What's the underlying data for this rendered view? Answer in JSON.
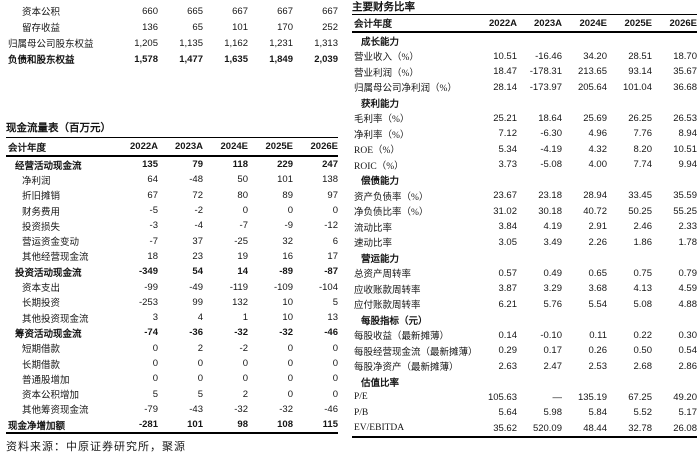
{
  "page": {
    "source_note": "资料来源：中原证券研究所，聚源"
  },
  "balance_sheet_tail": {
    "rows": [
      {
        "label": "资本公积",
        "indent": 2,
        "bold": false,
        "values": [
          "660",
          "665",
          "667",
          "667",
          "667"
        ]
      },
      {
        "label": "留存收益",
        "indent": 2,
        "bold": false,
        "values": [
          "136",
          "65",
          "101",
          "170",
          "252"
        ]
      },
      {
        "label": "归属母公司股东权益",
        "indent": 0,
        "bold": false,
        "values": [
          "1,205",
          "1,135",
          "1,162",
          "1,231",
          "1,313"
        ]
      },
      {
        "label": "负债和股东权益",
        "indent": 0,
        "bold": true,
        "values": [
          "1,578",
          "1,477",
          "1,635",
          "1,849",
          "2,039"
        ]
      }
    ]
  },
  "cash_flow": {
    "title": "现金流量表（百万元）",
    "header": {
      "label": "会计年度",
      "years": [
        "2022A",
        "2023A",
        "2024E",
        "2025E",
        "2026E"
      ]
    },
    "rows": [
      {
        "label": "经营活动现金流",
        "indent": 1,
        "bold": true,
        "values": [
          "135",
          "79",
          "118",
          "229",
          "247"
        ]
      },
      {
        "label": "净利润",
        "indent": 2,
        "bold": false,
        "values": [
          "64",
          "-48",
          "50",
          "101",
          "138"
        ]
      },
      {
        "label": "折旧摊销",
        "indent": 2,
        "bold": false,
        "values": [
          "67",
          "72",
          "80",
          "89",
          "97"
        ]
      },
      {
        "label": "财务费用",
        "indent": 2,
        "bold": false,
        "values": [
          "-5",
          "-2",
          "0",
          "0",
          "0"
        ]
      },
      {
        "label": "投资损失",
        "indent": 2,
        "bold": false,
        "values": [
          "-3",
          "-4",
          "-7",
          "-9",
          "-12"
        ]
      },
      {
        "label": "营运资金变动",
        "indent": 2,
        "bold": false,
        "values": [
          "-7",
          "37",
          "-25",
          "32",
          "6"
        ]
      },
      {
        "label": "其他经营现金流",
        "indent": 2,
        "bold": false,
        "values": [
          "18",
          "23",
          "19",
          "16",
          "17"
        ]
      },
      {
        "label": "投资活动现金流",
        "indent": 1,
        "bold": true,
        "values": [
          "-349",
          "54",
          "14",
          "-89",
          "-87"
        ]
      },
      {
        "label": "资本支出",
        "indent": 2,
        "bold": false,
        "values": [
          "-99",
          "-49",
          "-119",
          "-109",
          "-104"
        ]
      },
      {
        "label": "长期投资",
        "indent": 2,
        "bold": false,
        "values": [
          "-253",
          "99",
          "132",
          "10",
          "5"
        ]
      },
      {
        "label": "其他投资现金流",
        "indent": 2,
        "bold": false,
        "values": [
          "3",
          "4",
          "1",
          "10",
          "13"
        ]
      },
      {
        "label": "筹资活动现金流",
        "indent": 1,
        "bold": true,
        "values": [
          "-74",
          "-36",
          "-32",
          "-32",
          "-46"
        ]
      },
      {
        "label": "短期借款",
        "indent": 2,
        "bold": false,
        "values": [
          "0",
          "2",
          "-2",
          "0",
          "0"
        ]
      },
      {
        "label": "长期借款",
        "indent": 2,
        "bold": false,
        "values": [
          "0",
          "0",
          "0",
          "0",
          "0"
        ]
      },
      {
        "label": "普通股增加",
        "indent": 2,
        "bold": false,
        "values": [
          "0",
          "0",
          "0",
          "0",
          "0"
        ]
      },
      {
        "label": "资本公积增加",
        "indent": 2,
        "bold": false,
        "values": [
          "5",
          "5",
          "2",
          "0",
          "0"
        ]
      },
      {
        "label": "其他筹资现金流",
        "indent": 2,
        "bold": false,
        "values": [
          "-79",
          "-43",
          "-32",
          "-32",
          "-46"
        ]
      },
      {
        "label": "现金净增加额",
        "indent": 0,
        "bold": true,
        "values": [
          "-281",
          "101",
          "98",
          "108",
          "115"
        ]
      }
    ]
  },
  "ratios": {
    "title": "主要财务比率",
    "header": {
      "label": "会计年度",
      "years": [
        "2022A",
        "2023A",
        "2024E",
        "2025E",
        "2026E"
      ]
    },
    "rows": [
      {
        "label": "成长能力",
        "indent": 1,
        "bold": true,
        "values": []
      },
      {
        "label": "营业收入（%）",
        "indent": 0,
        "bold": false,
        "values": [
          "10.51",
          "-16.46",
          "34.20",
          "28.51",
          "18.70"
        ]
      },
      {
        "label": "营业利润（%）",
        "indent": 0,
        "bold": false,
        "values": [
          "18.47",
          "-178.31",
          "213.65",
          "93.14",
          "35.67"
        ]
      },
      {
        "label": "归属母公司净利润（%）",
        "indent": 0,
        "bold": false,
        "values": [
          "28.14",
          "-173.97",
          "205.64",
          "101.04",
          "36.68"
        ]
      },
      {
        "label": "获利能力",
        "indent": 1,
        "bold": true,
        "values": []
      },
      {
        "label": "毛利率（%）",
        "indent": 0,
        "bold": false,
        "values": [
          "25.21",
          "18.64",
          "25.69",
          "26.25",
          "26.53"
        ]
      },
      {
        "label": "净利率（%）",
        "indent": 0,
        "bold": false,
        "values": [
          "7.12",
          "-6.30",
          "4.96",
          "7.76",
          "8.94"
        ]
      },
      {
        "label": "ROE（%）",
        "indent": 0,
        "bold": false,
        "values": [
          "5.34",
          "-4.19",
          "4.32",
          "8.20",
          "10.51"
        ]
      },
      {
        "label": "ROIC（%）",
        "indent": 0,
        "bold": false,
        "values": [
          "3.73",
          "-5.08",
          "4.00",
          "7.74",
          "9.94"
        ]
      },
      {
        "label": "偿债能力",
        "indent": 1,
        "bold": true,
        "values": []
      },
      {
        "label": "资产负债率（%）",
        "indent": 0,
        "bold": false,
        "values": [
          "23.67",
          "23.18",
          "28.94",
          "33.45",
          "35.59"
        ]
      },
      {
        "label": "净负债比率（%）",
        "indent": 0,
        "bold": false,
        "values": [
          "31.02",
          "30.18",
          "40.72",
          "50.25",
          "55.25"
        ]
      },
      {
        "label": "流动比率",
        "indent": 0,
        "bold": false,
        "values": [
          "3.84",
          "4.19",
          "2.91",
          "2.46",
          "2.33"
        ]
      },
      {
        "label": "速动比率",
        "indent": 0,
        "bold": false,
        "values": [
          "3.05",
          "3.49",
          "2.26",
          "1.86",
          "1.78"
        ]
      },
      {
        "label": "营运能力",
        "indent": 1,
        "bold": true,
        "values": []
      },
      {
        "label": "总资产周转率",
        "indent": 0,
        "bold": false,
        "values": [
          "0.57",
          "0.49",
          "0.65",
          "0.75",
          "0.79"
        ]
      },
      {
        "label": "应收账款周转率",
        "indent": 0,
        "bold": false,
        "values": [
          "3.87",
          "3.29",
          "3.68",
          "4.13",
          "4.59"
        ]
      },
      {
        "label": "应付账款周转率",
        "indent": 0,
        "bold": false,
        "values": [
          "6.21",
          "5.76",
          "5.54",
          "5.08",
          "4.88"
        ]
      },
      {
        "label": "每股指标（元）",
        "indent": 1,
        "bold": true,
        "values": []
      },
      {
        "label": "每股收益（最新摊薄）",
        "indent": 0,
        "bold": false,
        "values": [
          "0.14",
          "-0.10",
          "0.11",
          "0.22",
          "0.30"
        ]
      },
      {
        "label": "每股经营现金流（最新摊薄）",
        "indent": 0,
        "bold": false,
        "values": [
          "0.29",
          "0.17",
          "0.26",
          "0.50",
          "0.54"
        ]
      },
      {
        "label": "每股净资产（最新摊薄）",
        "indent": 0,
        "bold": false,
        "values": [
          "2.63",
          "2.47",
          "2.53",
          "2.68",
          "2.86"
        ]
      },
      {
        "label": "估值比率",
        "indent": 1,
        "bold": true,
        "values": []
      },
      {
        "label": "P/E",
        "indent": 0,
        "bold": false,
        "values": [
          "105.63",
          "—",
          "135.19",
          "67.25",
          "49.20"
        ]
      },
      {
        "label": "P/B",
        "indent": 0,
        "bold": false,
        "values": [
          "5.64",
          "5.98",
          "5.84",
          "5.52",
          "5.17"
        ]
      },
      {
        "label": "EV/EBITDA",
        "indent": 0,
        "bold": false,
        "values": [
          "35.62",
          "520.09",
          "48.44",
          "32.78",
          "26.08"
        ]
      }
    ]
  }
}
